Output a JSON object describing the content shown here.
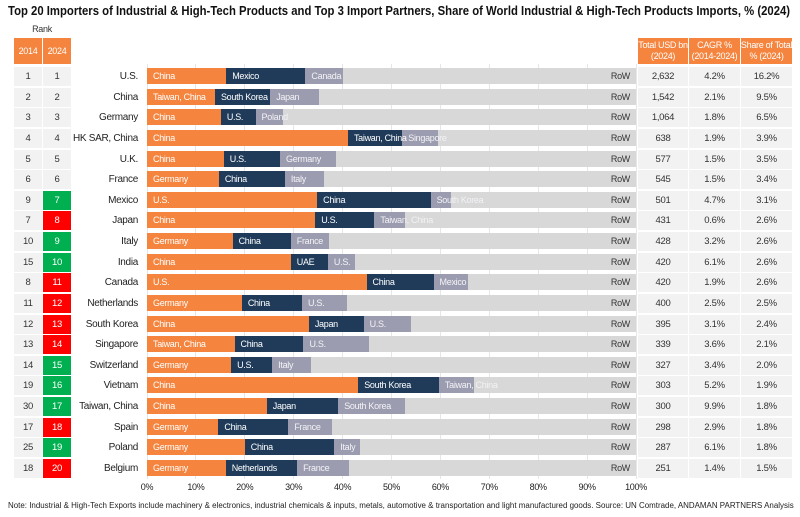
{
  "title": "Top 20 Importers of Industrial & High-Tech Products and Top 3 Import Partners, Share of World Industrial & High-Tech Products Imports, % (2024)",
  "rank_header": {
    "label": "Rank",
    "col_2014": "2014",
    "col_2024": "2024"
  },
  "stats_headers": [
    {
      "line1": "Total USD bn",
      "line2": "(2024)"
    },
    {
      "line1": "CAGR %",
      "line2": "(2014-2024)"
    },
    {
      "line1": "Share of Total",
      "line2": "% (2024)"
    }
  ],
  "colors": {
    "header": "#F4843E",
    "cell": "#F2F2F2",
    "rank_up": "#00B050",
    "rank_down": "#FF0000"
  },
  "table": {
    "rows": [
      {
        "rank_2014": "1",
        "rank_2024": "1",
        "highlight": "none",
        "total_usd_bn": "2,632",
        "cagr": "4.2%",
        "share_of_total": "16.2%"
      },
      {
        "rank_2014": "2",
        "rank_2024": "2",
        "highlight": "none",
        "total_usd_bn": "1,542",
        "cagr": "2.1%",
        "share_of_total": "9.5%"
      },
      {
        "rank_2014": "3",
        "rank_2024": "3",
        "highlight": "none",
        "total_usd_bn": "1,064",
        "cagr": "1.8%",
        "share_of_total": "6.5%"
      },
      {
        "rank_2014": "4",
        "rank_2024": "4",
        "highlight": "none",
        "total_usd_bn": "638",
        "cagr": "1.9%",
        "share_of_total": "3.9%"
      },
      {
        "rank_2014": "5",
        "rank_2024": "5",
        "highlight": "none",
        "total_usd_bn": "577",
        "cagr": "1.5%",
        "share_of_total": "3.5%"
      },
      {
        "rank_2014": "6",
        "rank_2024": "6",
        "highlight": "none",
        "total_usd_bn": "545",
        "cagr": "1.5%",
        "share_of_total": "3.4%"
      },
      {
        "rank_2014": "9",
        "rank_2024": "7",
        "highlight": "rank_up",
        "total_usd_bn": "501",
        "cagr": "4.7%",
        "share_of_total": "3.1%"
      },
      {
        "rank_2014": "7",
        "rank_2024": "8",
        "highlight": "rank_down",
        "total_usd_bn": "431",
        "cagr": "0.6%",
        "share_of_total": "2.6%"
      },
      {
        "rank_2014": "10",
        "rank_2024": "9",
        "highlight": "rank_up",
        "total_usd_bn": "428",
        "cagr": "3.2%",
        "share_of_total": "2.6%"
      },
      {
        "rank_2014": "15",
        "rank_2024": "10",
        "highlight": "rank_up",
        "total_usd_bn": "420",
        "cagr": "6.1%",
        "share_of_total": "2.6%"
      },
      {
        "rank_2014": "8",
        "rank_2024": "11",
        "highlight": "rank_down",
        "total_usd_bn": "420",
        "cagr": "1.9%",
        "share_of_total": "2.6%"
      },
      {
        "rank_2014": "11",
        "rank_2024": "12",
        "highlight": "rank_down",
        "total_usd_bn": "400",
        "cagr": "2.5%",
        "share_of_total": "2.5%"
      },
      {
        "rank_2014": "12",
        "rank_2024": "13",
        "highlight": "rank_down",
        "total_usd_bn": "395",
        "cagr": "3.1%",
        "share_of_total": "2.4%"
      },
      {
        "rank_2014": "13",
        "rank_2024": "14",
        "highlight": "rank_down",
        "total_usd_bn": "339",
        "cagr": "3.6%",
        "share_of_total": "2.1%"
      },
      {
        "rank_2014": "14",
        "rank_2024": "15",
        "highlight": "rank_up",
        "total_usd_bn": "327",
        "cagr": "3.4%",
        "share_of_total": "2.0%"
      },
      {
        "rank_2014": "19",
        "rank_2024": "16",
        "highlight": "rank_up",
        "total_usd_bn": "303",
        "cagr": "5.2%",
        "share_of_total": "1.9%"
      },
      {
        "rank_2014": "30",
        "rank_2024": "17",
        "highlight": "rank_up",
        "total_usd_bn": "300",
        "cagr": "9.9%",
        "share_of_total": "1.8%"
      },
      {
        "rank_2014": "17",
        "rank_2024": "18",
        "highlight": "rank_down",
        "total_usd_bn": "298",
        "cagr": "2.9%",
        "share_of_total": "1.8%"
      },
      {
        "rank_2014": "25",
        "rank_2024": "19",
        "highlight": "rank_up",
        "total_usd_bn": "287",
        "cagr": "6.1%",
        "share_of_total": "1.8%"
      },
      {
        "rank_2014": "18",
        "rank_2024": "20",
        "highlight": "rank_down",
        "total_usd_bn": "251",
        "cagr": "1.4%",
        "share_of_total": "1.5%"
      }
    ]
  },
  "chart_data": {
    "type": "bar",
    "orientation": "horizontal",
    "stacked": true,
    "title": "Top 20 Importers of Industrial & High-Tech Products and Top 3 Import Partners, Share of World Industrial & High-Tech Products Imports, % (2024)",
    "xlabel": "",
    "ylabel": "",
    "xlim": [
      0,
      100
    ],
    "x_unit": "%",
    "grid": true,
    "series_colors": [
      "#F4843E",
      "#1F3B59",
      "#9C9CB0"
    ],
    "rest_color": "#D8D8D8",
    "x_ticks": [
      {
        "value": 0,
        "label": "0%"
      },
      {
        "value": 10,
        "label": "10%"
      },
      {
        "value": 20,
        "label": "20%"
      },
      {
        "value": 30,
        "label": "30%"
      },
      {
        "value": 40,
        "label": "40%"
      },
      {
        "value": 50,
        "label": "50%"
      },
      {
        "value": 60,
        "label": "60%"
      },
      {
        "value": 70,
        "label": "70%"
      },
      {
        "value": 80,
        "label": "80%"
      },
      {
        "value": 90,
        "label": "90%"
      },
      {
        "value": 100,
        "label": "100%"
      }
    ],
    "categories": [
      "U.S.",
      "China",
      "Germany",
      "HK SAR, China",
      "U.K.",
      "France",
      "Mexico",
      "Japan",
      "Italy",
      "India",
      "Canada",
      "Netherlands",
      "South Korea",
      "Singapore",
      "Switzerland",
      "Vietnam",
      "Taiwan, China",
      "Spain",
      "Poland",
      "Belgium"
    ],
    "bars": [
      {
        "partners": [
          {
            "name": "China",
            "share": 16.2
          },
          {
            "name": "Mexico",
            "share": 16.2
          },
          {
            "name": "Canada",
            "share": 7.6
          }
        ],
        "rest_label": "RoW",
        "rest_share": 60.0
      },
      {
        "partners": [
          {
            "name": "Taiwan, China",
            "share": 13.9
          },
          {
            "name": "South Korea",
            "share": 11.3
          },
          {
            "name": "Japan",
            "share": 10.0
          }
        ],
        "rest_label": "RoW",
        "rest_share": 64.8
      },
      {
        "partners": [
          {
            "name": "China",
            "share": 15.1
          },
          {
            "name": "U.S.",
            "share": 7.1
          },
          {
            "name": "Poland",
            "share": 5.7
          }
        ],
        "rest_label": "RoW",
        "rest_share": 72.1
      },
      {
        "partners": [
          {
            "name": "China",
            "share": 41.1
          },
          {
            "name": "Taiwan, China",
            "share": 11.1
          },
          {
            "name": "Singapore",
            "share": 7.4
          }
        ],
        "rest_label": "RoW",
        "rest_share": 40.4
      },
      {
        "partners": [
          {
            "name": "China",
            "share": 15.7
          },
          {
            "name": "U.S.",
            "share": 11.5
          },
          {
            "name": "Germany",
            "share": 11.5
          }
        ],
        "rest_label": "RoW",
        "rest_share": 61.3
      },
      {
        "partners": [
          {
            "name": "Germany",
            "share": 14.7
          },
          {
            "name": "China",
            "share": 13.5
          },
          {
            "name": "Italy",
            "share": 7.9
          }
        ],
        "rest_label": "RoW",
        "rest_share": 63.9
      },
      {
        "partners": [
          {
            "name": "U.S.",
            "share": 34.8
          },
          {
            "name": "China",
            "share": 23.2
          },
          {
            "name": "South Korea",
            "share": 4.2
          }
        ],
        "rest_label": "RoW",
        "rest_share": 37.8
      },
      {
        "partners": [
          {
            "name": "China",
            "share": 34.4
          },
          {
            "name": "U.S.",
            "share": 12.1
          },
          {
            "name": "Taiwan, China",
            "share": 6.3
          }
        ],
        "rest_label": "RoW",
        "rest_share": 47.2
      },
      {
        "partners": [
          {
            "name": "Germany",
            "share": 17.5
          },
          {
            "name": "China",
            "share": 11.9
          },
          {
            "name": "France",
            "share": 7.8
          }
        ],
        "rest_label": "RoW",
        "rest_share": 62.8
      },
      {
        "partners": [
          {
            "name": "China",
            "share": 29.4
          },
          {
            "name": "UAE",
            "share": 7.6
          },
          {
            "name": "U.S.",
            "share": 5.5
          }
        ],
        "rest_label": "RoW",
        "rest_share": 57.5
      },
      {
        "partners": [
          {
            "name": "U.S.",
            "share": 44.9
          },
          {
            "name": "China",
            "share": 13.7
          },
          {
            "name": "Mexico",
            "share": 7.1
          }
        ],
        "rest_label": "RoW",
        "rest_share": 34.3
      },
      {
        "partners": [
          {
            "name": "Germany",
            "share": 19.4
          },
          {
            "name": "China",
            "share": 12.3
          },
          {
            "name": "U.S.",
            "share": 9.2
          }
        ],
        "rest_label": "RoW",
        "rest_share": 59.1
      },
      {
        "partners": [
          {
            "name": "China",
            "share": 33.1
          },
          {
            "name": "Japan",
            "share": 11.2
          },
          {
            "name": "U.S.",
            "share": 9.7
          }
        ],
        "rest_label": "RoW",
        "rest_share": 46.0
      },
      {
        "partners": [
          {
            "name": "Taiwan, China",
            "share": 17.9
          },
          {
            "name": "China",
            "share": 14.1
          },
          {
            "name": "U.S.",
            "share": 13.3
          }
        ],
        "rest_label": "RoW",
        "rest_share": 54.7
      },
      {
        "partners": [
          {
            "name": "Germany",
            "share": 17.2
          },
          {
            "name": "U.S.",
            "share": 8.4
          },
          {
            "name": "Italy",
            "share": 7.9
          }
        ],
        "rest_label": "RoW",
        "rest_share": 66.5
      },
      {
        "partners": [
          {
            "name": "China",
            "share": 43.2
          },
          {
            "name": "South Korea",
            "share": 16.5
          },
          {
            "name": "Taiwan, China",
            "share": 7.2
          }
        ],
        "rest_label": "RoW",
        "rest_share": 33.1
      },
      {
        "partners": [
          {
            "name": "China",
            "share": 24.5
          },
          {
            "name": "Japan",
            "share": 14.6
          },
          {
            "name": "South Korea",
            "share": 13.7
          }
        ],
        "rest_label": "RoW",
        "rest_share": 47.2
      },
      {
        "partners": [
          {
            "name": "Germany",
            "share": 14.6
          },
          {
            "name": "China",
            "share": 14.3
          },
          {
            "name": "France",
            "share": 8.9
          }
        ],
        "rest_label": "RoW",
        "rest_share": 62.2
      },
      {
        "partners": [
          {
            "name": "Germany",
            "share": 20.0
          },
          {
            "name": "China",
            "share": 18.3
          },
          {
            "name": "Italy",
            "share": 5.3
          }
        ],
        "rest_label": "RoW",
        "rest_share": 56.4
      },
      {
        "partners": [
          {
            "name": "Germany",
            "share": 16.1
          },
          {
            "name": "Netherlands",
            "share": 14.6
          },
          {
            "name": "France",
            "share": 10.6
          }
        ],
        "rest_label": "RoW",
        "rest_share": 58.7
      }
    ]
  },
  "note": "Note: Industrial & High-Tech Exports include machinery & electronics, industrial chemicals & inputs, metals, automotive & transportation and light manufactured goods. Source: UN Comtrade, ANDAMAN PARTNERS Analysis"
}
